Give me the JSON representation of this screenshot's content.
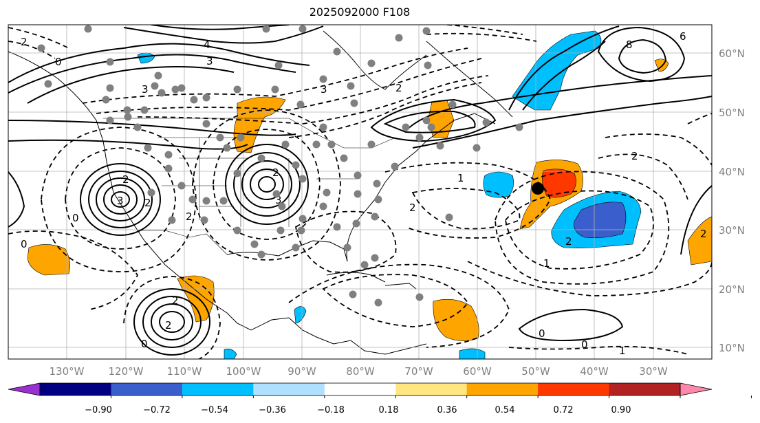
{
  "title": "2025092000 F108",
  "longitude_labels": [
    "130°W",
    "120°W",
    "110°W",
    "100°W",
    "90°W",
    "80°W",
    "70°W",
    "60°W",
    "50°W",
    "40°W",
    "30°W"
  ],
  "latitude_labels": [
    "60°N",
    "50°N",
    "40°N",
    "30°N",
    "20°N",
    "10°N"
  ],
  "colorbar": {
    "tick_labels": [
      "−0.90",
      "−0.72",
      "−0.54",
      "−0.36",
      "−0.18",
      "0.18",
      "0.36",
      "0.54",
      "0.72",
      "0.90"
    ],
    "colors": [
      "#9b30d0",
      "#000080",
      "#3a5fcd",
      "#00bfff",
      "#b0e0ff",
      "#ffffff",
      "#ffe680",
      "#ffa500",
      "#ff3800",
      "#b22222",
      "#ff88aa"
    ],
    "extend": "both"
  },
  "contour_labels": [
    "4",
    "3",
    "8",
    "6",
    "2",
    "0",
    "3",
    "2",
    "1",
    "2",
    "2",
    "3",
    "2",
    "3",
    "2",
    "0",
    "2",
    "1",
    "2",
    "2",
    "0",
    "0",
    "2",
    "0",
    "1",
    "0",
    "2",
    "3",
    "2"
  ],
  "marker": "black-dot",
  "observation_marker": "gray-dots"
}
